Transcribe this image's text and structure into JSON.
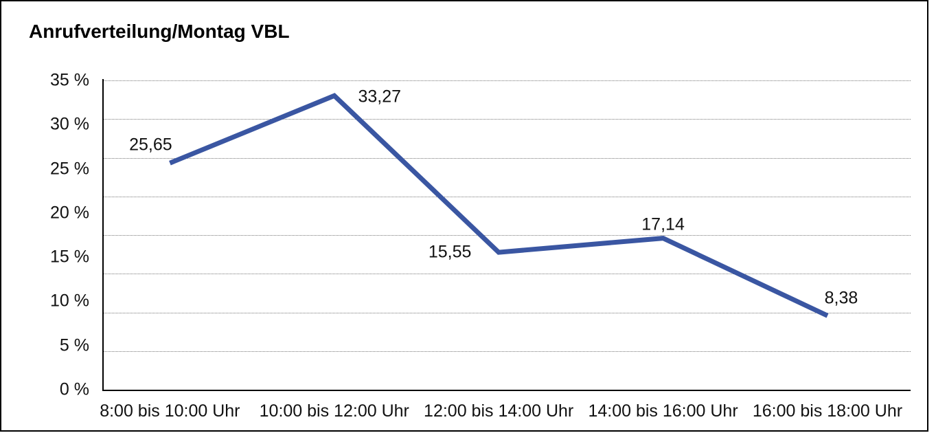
{
  "frame": {
    "background": "#ffffff",
    "border_color": "#000000"
  },
  "chart_data": {
    "type": "line",
    "title": "Anrufverteilung/Montag VBL",
    "categories": [
      "8:00 bis 10:00 Uhr",
      "10:00 bis 12:00 Uhr",
      "12:00 bis 14:00 Uhr",
      "14:00 bis 16:00 Uhr",
      "16:00 bis 18:00 Uhr"
    ],
    "values": [
      25.65,
      33.27,
      15.55,
      17.14,
      8.38
    ],
    "point_labels": [
      "25,65",
      "33,27",
      "15,55",
      "17,14",
      "8,38"
    ],
    "point_label_positions": [
      "above-left",
      "right",
      "left",
      "above",
      "above-right"
    ],
    "y_axis": {
      "min": 0,
      "max": 35,
      "ticks": [
        {
          "value": 35,
          "label": "35 %"
        },
        {
          "value": 30,
          "label": "30 %"
        },
        {
          "value": 25,
          "label": "25 %"
        },
        {
          "value": 20,
          "label": "20 %"
        },
        {
          "value": 15,
          "label": "15 %"
        },
        {
          "value": 10,
          "label": "10 %"
        },
        {
          "value": 5,
          "label": "5 %"
        },
        {
          "value": 0,
          "label": "0 %"
        }
      ]
    },
    "grid": {
      "horizontal": true,
      "style": "dotted",
      "count": 8
    },
    "legend": "none",
    "ylim": [
      0,
      35
    ],
    "line_color": "#3A56A2",
    "axis_color": "#000000",
    "gridline_color": "#777777",
    "text_color": "#111111"
  }
}
